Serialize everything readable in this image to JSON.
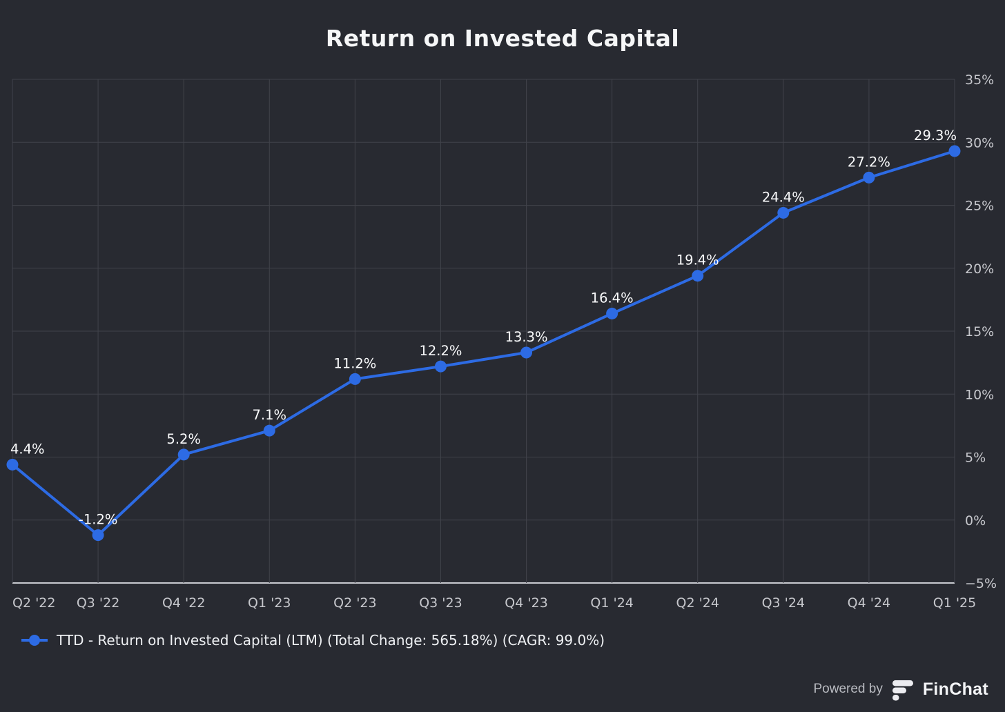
{
  "chart_data": {
    "type": "line",
    "title": "Return on Invested Capital",
    "categories": [
      "Q2 '22",
      "Q3 '22",
      "Q4 '22",
      "Q1 '23",
      "Q2 '23",
      "Q3 '23",
      "Q4 '23",
      "Q1 '24",
      "Q2 '24",
      "Q3 '24",
      "Q4 '24",
      "Q1 '25"
    ],
    "series": [
      {
        "name": "TTD - Return on Invested Capital (LTM) (Total Change: 565.18%) (CAGR: 99.0%)",
        "values": [
          4.4,
          -1.2,
          5.2,
          7.1,
          11.2,
          12.2,
          13.3,
          16.4,
          19.4,
          24.4,
          27.2,
          29.3
        ],
        "point_labels": [
          "4.4%",
          "-1.2%",
          "5.2%",
          "7.1%",
          "11.2%",
          "12.2%",
          "13.3%",
          "16.4%",
          "19.4%",
          "24.4%",
          "27.2%",
          "29.3%"
        ]
      }
    ],
    "ylim": [
      -5,
      35
    ],
    "y_ticks": [
      35,
      30,
      25,
      20,
      15,
      10,
      5,
      0,
      -5
    ],
    "y_tick_labels": [
      "35%",
      "30%",
      "25%",
      "20%",
      "15%",
      "10%",
      "5%",
      "0%",
      "−5%"
    ],
    "grid": true,
    "legend_position": "bottom-left",
    "colors": {
      "background": "#282a31",
      "series_line": "#2d6be4",
      "marker_fill": "#2d6be4",
      "gridline": "#41434b",
      "axis_line": "#c9cbd1",
      "tick_text": "#c6c7cc",
      "data_label_text": "#fafbfc"
    }
  },
  "legend": {
    "label": "TTD - Return on Invested Capital (LTM) (Total Change: 565.18%) (CAGR: 99.0%)"
  },
  "footer": {
    "powered_by": "Powered by",
    "brand": "FinChat"
  }
}
